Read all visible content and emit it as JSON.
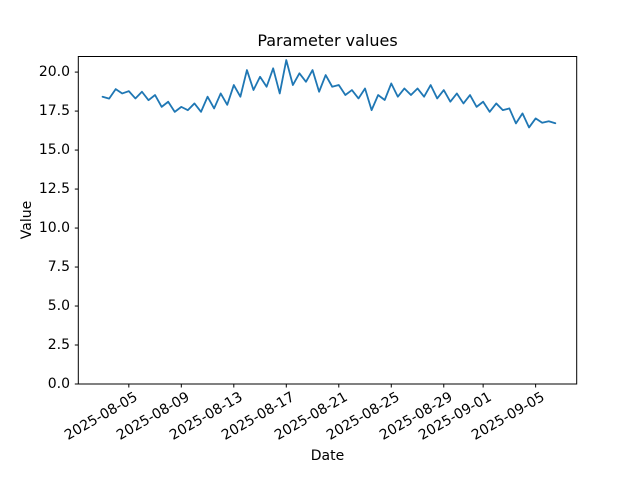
{
  "window": {
    "background_color": "#ffffff"
  },
  "chart_data": {
    "type": "line",
    "title": "Parameter values",
    "xlabel": "Date",
    "ylabel": "Value",
    "legend": null,
    "grid": false,
    "line_color": "#1f77b4",
    "axis_color": "#000000",
    "x_start_date": "2025-08-03",
    "x_step_days": 0.5,
    "values": [
      18.42,
      18.3,
      18.91,
      18.63,
      18.78,
      18.31,
      18.74,
      18.2,
      18.53,
      17.77,
      18.1,
      17.45,
      17.77,
      17.56,
      17.99,
      17.45,
      18.42,
      17.67,
      18.63,
      17.9,
      19.17,
      18.42,
      20.13,
      18.85,
      19.7,
      19.06,
      20.24,
      18.63,
      20.77,
      19.17,
      19.92,
      19.38,
      20.13,
      18.74,
      19.81,
      19.06,
      19.17,
      18.53,
      18.85,
      18.31,
      18.95,
      17.56,
      18.53,
      18.21,
      19.27,
      18.42,
      18.95,
      18.53,
      18.95,
      18.42,
      19.17,
      18.31,
      18.85,
      18.1,
      18.63,
      17.99,
      18.53,
      17.77,
      18.1,
      17.45,
      17.99,
      17.56,
      17.67,
      16.71,
      17.35,
      16.45,
      17.03,
      16.75,
      16.85,
      16.72
    ],
    "xlim_days": [
      -1.85,
      36.13
    ],
    "ylim": [
      0,
      21.0
    ],
    "xticks": [
      {
        "label": "2025-08-05",
        "day_offset": 2
      },
      {
        "label": "2025-08-09",
        "day_offset": 6
      },
      {
        "label": "2025-08-13",
        "day_offset": 10
      },
      {
        "label": "2025-08-17",
        "day_offset": 14
      },
      {
        "label": "2025-08-21",
        "day_offset": 18
      },
      {
        "label": "2025-08-25",
        "day_offset": 22
      },
      {
        "label": "2025-08-29",
        "day_offset": 26
      },
      {
        "label": "2025-09-01",
        "day_offset": 29
      },
      {
        "label": "2025-09-05",
        "day_offset": 33
      }
    ],
    "yticks": [
      "0.0",
      "2.5",
      "5.0",
      "7.5",
      "10.0",
      "12.5",
      "15.0",
      "17.5",
      "20.0"
    ]
  }
}
